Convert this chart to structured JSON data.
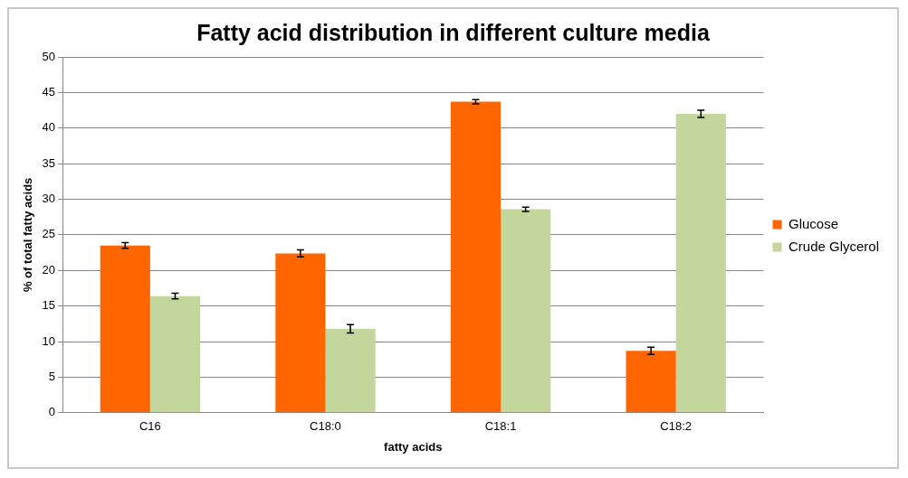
{
  "chart_data": {
    "type": "bar",
    "title": "Fatty acid distribution in different culture media",
    "xlabel": "fatty acids",
    "ylabel": "% of total fatty acids",
    "categories": [
      "C16",
      "C18:0",
      "C18:1",
      "C18:2"
    ],
    "series": [
      {
        "name": "Glucose",
        "color": "#ff6600",
        "values": [
          23.5,
          22.4,
          43.7,
          8.7
        ],
        "errors": [
          0.4,
          0.5,
          0.3,
          0.5
        ]
      },
      {
        "name": "Crude Glycerol",
        "color": "#c3d69b",
        "values": [
          16.4,
          11.8,
          28.6,
          42.0
        ],
        "errors": [
          0.4,
          0.6,
          0.3,
          0.5
        ]
      }
    ],
    "ylim": [
      0,
      50
    ],
    "yticks": [
      0,
      5,
      10,
      15,
      20,
      25,
      30,
      35,
      40,
      45,
      50
    ],
    "grid": "y",
    "legend": "right"
  }
}
